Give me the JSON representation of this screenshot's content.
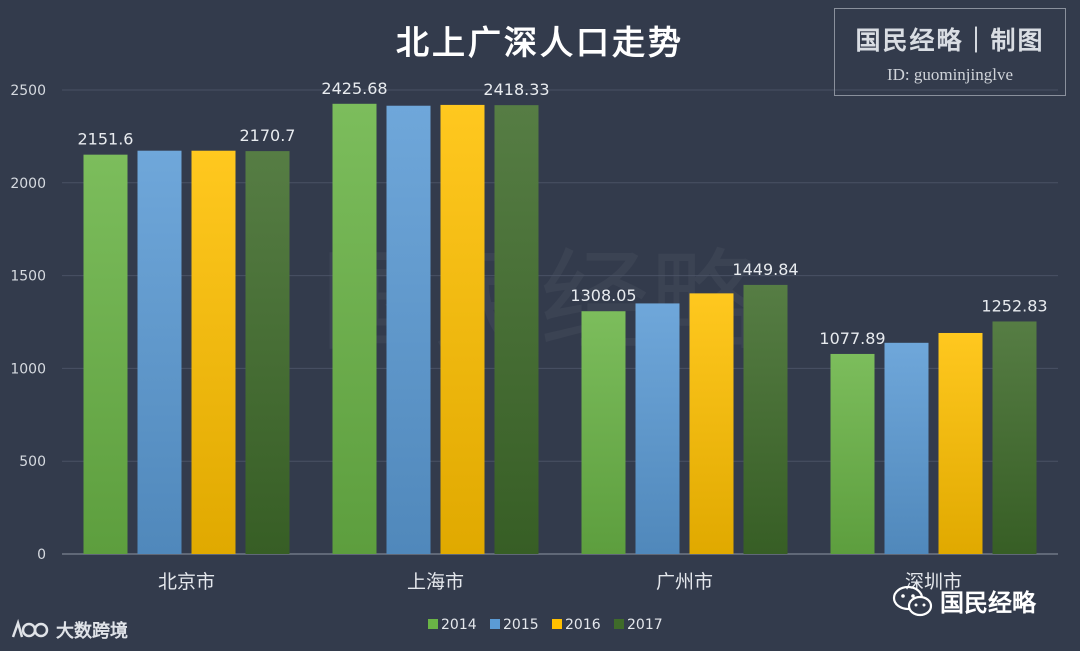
{
  "chart_data": {
    "type": "bar",
    "title": "北上广深人口走势",
    "xlabel": "",
    "ylabel": "",
    "ylim": [
      0,
      2500
    ],
    "yticks": [
      0,
      500,
      1000,
      1500,
      2000,
      2500
    ],
    "grid": true,
    "legend_position": "bottom",
    "categories": [
      "北京市",
      "上海市",
      "广州市",
      "深圳市"
    ],
    "series": [
      {
        "name": "2014",
        "color": "#6ab446",
        "values": [
          2151.6,
          2425.68,
          1308.05,
          1077.89
        ]
      },
      {
        "name": "2015",
        "color": "#5b9bd5",
        "values": [
          2173,
          2415.27,
          1350.11,
          1137.87
        ]
      },
      {
        "name": "2016",
        "color": "#ffc000",
        "values": [
          2172.9,
          2419.7,
          1404.35,
          1190.84
        ]
      },
      {
        "name": "2017",
        "color": "#3f6b2a",
        "values": [
          2170.7,
          2418.33,
          1449.84,
          1252.83
        ]
      }
    ],
    "data_labels": [
      {
        "category": 0,
        "series": 0,
        "text": "2151.6"
      },
      {
        "category": 0,
        "series": 3,
        "text": "2170.7"
      },
      {
        "category": 1,
        "series": 0,
        "text": "2425.68"
      },
      {
        "category": 1,
        "series": 3,
        "text": "2418.33"
      },
      {
        "category": 2,
        "series": 0,
        "text": "1308.05"
      },
      {
        "category": 2,
        "series": 3,
        "text": "1449.84"
      },
      {
        "category": 3,
        "series": 0,
        "text": "1077.89"
      },
      {
        "category": 3,
        "series": 3,
        "text": "1252.83"
      }
    ]
  },
  "credit": {
    "title": "国民经略｜制图",
    "id": "ID: guominjinglve"
  },
  "watermark": {
    "account": "国民经略",
    "icon": "wechat-icon"
  },
  "source": {
    "name": "大数跨境",
    "icon": "tiger-logo-icon"
  }
}
